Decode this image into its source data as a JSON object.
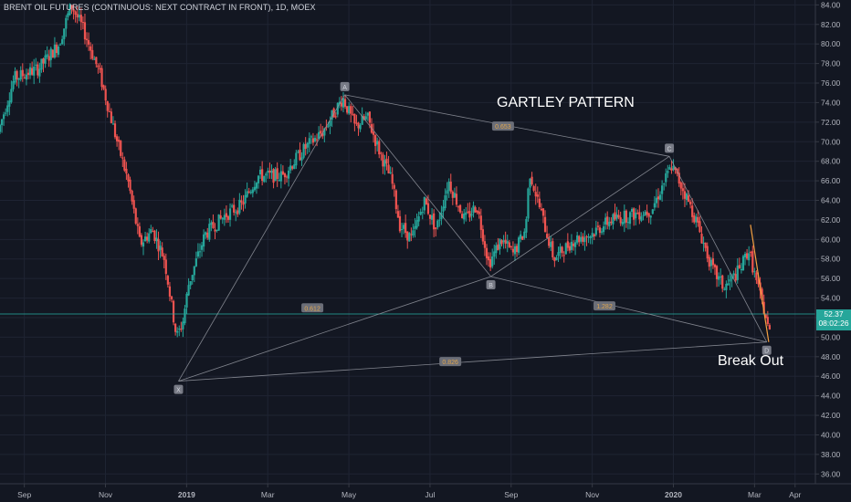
{
  "chart_title": "BRENT OIL FUTURES (CONTINUOUS: NEXT CONTRACT IN FRONT), 1D, MOEX",
  "pattern_title": "GARTLEY PATTERN",
  "breakout_label": "Break Out",
  "price_tag": {
    "value": "52.37",
    "time": "08:02:26"
  },
  "colors": {
    "bg": "#131722",
    "up": "#26a69a",
    "down": "#ef5350",
    "grid": "#1f2433",
    "axis_text": "#b2b5be",
    "pattern_line": "#9598a1",
    "ratio_box": "#6b6e78",
    "ratio_text": "#e0a650",
    "price_line": "#26a69a",
    "forecast": "#f5a142"
  },
  "chart_data": {
    "type": "candlestick",
    "title": "BRENT OIL FUTURES (CONTINUOUS: NEXT CONTRACT IN FRONT), 1D, MOEX",
    "ylim": [
      35,
      84.5
    ],
    "y_ticks": [
      36,
      38,
      40,
      42,
      44,
      46,
      48,
      50,
      52,
      54,
      56,
      58,
      60,
      62,
      64,
      66,
      68,
      70,
      72,
      74,
      76,
      78,
      80,
      82,
      84
    ],
    "x_ticks": [
      "Sep",
      "Nov",
      "2019",
      "Mar",
      "May",
      "Jul",
      "Sep",
      "Nov",
      "2020",
      "Mar",
      "Apr"
    ],
    "x_tick_month_index": [
      0,
      2,
      4,
      6,
      8,
      10,
      12,
      14,
      16,
      18,
      19
    ],
    "x_start_month_index": -0.6,
    "x_end_month_index": 19.5,
    "price_keypoints": [
      {
        "m": -0.6,
        "p": 71.0
      },
      {
        "m": -0.2,
        "p": 76.5
      },
      {
        "m": 0.4,
        "p": 77.5
      },
      {
        "m": 0.9,
        "p": 80.0
      },
      {
        "m": 1.2,
        "p": 84.0
      },
      {
        "m": 1.5,
        "p": 81.5
      },
      {
        "m": 1.9,
        "p": 77.0
      },
      {
        "m": 2.3,
        "p": 70.5
      },
      {
        "m": 2.6,
        "p": 66.0
      },
      {
        "m": 2.9,
        "p": 59.5
      },
      {
        "m": 3.2,
        "p": 61.0
      },
      {
        "m": 3.5,
        "p": 58.0
      },
      {
        "m": 3.8,
        "p": 50.0
      },
      {
        "m": 3.95,
        "p": 51.5
      },
      {
        "m": 4.1,
        "p": 55.5
      },
      {
        "m": 4.5,
        "p": 60.5
      },
      {
        "m": 5.0,
        "p": 62.5
      },
      {
        "m": 5.4,
        "p": 63.5
      },
      {
        "m": 5.8,
        "p": 66.5
      },
      {
        "m": 6.4,
        "p": 66.5
      },
      {
        "m": 7.0,
        "p": 69.5
      },
      {
        "m": 7.4,
        "p": 71.0
      },
      {
        "m": 7.9,
        "p": 74.5
      },
      {
        "m": 8.2,
        "p": 71.5
      },
      {
        "m": 8.5,
        "p": 72.5
      },
      {
        "m": 8.8,
        "p": 69.0
      },
      {
        "m": 9.1,
        "p": 66.0
      },
      {
        "m": 9.3,
        "p": 61.5
      },
      {
        "m": 9.6,
        "p": 60.0
      },
      {
        "m": 9.9,
        "p": 64.0
      },
      {
        "m": 10.2,
        "p": 61.0
      },
      {
        "m": 10.5,
        "p": 66.0
      },
      {
        "m": 10.9,
        "p": 62.0
      },
      {
        "m": 11.2,
        "p": 63.5
      },
      {
        "m": 11.5,
        "p": 57.5
      },
      {
        "m": 11.8,
        "p": 60.0
      },
      {
        "m": 12.1,
        "p": 58.5
      },
      {
        "m": 12.4,
        "p": 61.0
      },
      {
        "m": 12.5,
        "p": 67.0
      },
      {
        "m": 12.8,
        "p": 62.5
      },
      {
        "m": 13.1,
        "p": 58.0
      },
      {
        "m": 13.6,
        "p": 60.0
      },
      {
        "m": 14.0,
        "p": 60.5
      },
      {
        "m": 14.5,
        "p": 62.0
      },
      {
        "m": 15.0,
        "p": 62.5
      },
      {
        "m": 15.5,
        "p": 63.0
      },
      {
        "m": 16.0,
        "p": 67.5
      },
      {
        "m": 16.3,
        "p": 65.0
      },
      {
        "m": 16.6,
        "p": 62.0
      },
      {
        "m": 17.0,
        "p": 57.0
      },
      {
        "m": 17.3,
        "p": 55.0
      },
      {
        "m": 17.7,
        "p": 57.0
      },
      {
        "m": 17.9,
        "p": 59.0
      },
      {
        "m": 18.1,
        "p": 55.5
      },
      {
        "m": 18.3,
        "p": 52.5
      },
      {
        "m": 18.4,
        "p": 50.5
      }
    ],
    "pattern_points": [
      {
        "label": "X",
        "m": 3.8,
        "p": 45.5
      },
      {
        "label": "A",
        "m": 7.9,
        "p": 74.8
      },
      {
        "label": "B",
        "m": 11.5,
        "p": 56.2
      },
      {
        "label": "C",
        "m": 15.9,
        "p": 68.5
      },
      {
        "label": "D",
        "m": 18.3,
        "p": 49.5
      }
    ],
    "ratios": [
      {
        "label": "0.653",
        "m": 11.8,
        "p": 71.6
      },
      {
        "label": "0.612",
        "m": 7.1,
        "p": 53.0
      },
      {
        "label": "1.282",
        "m": 14.3,
        "p": 53.2
      },
      {
        "label": "0.826",
        "m": 10.5,
        "p": 47.5
      }
    ],
    "price_line": 52.37,
    "forecast_path": [
      {
        "m": 17.9,
        "p": 61.5
      },
      {
        "m": 18.35,
        "p": 49.5
      }
    ]
  }
}
